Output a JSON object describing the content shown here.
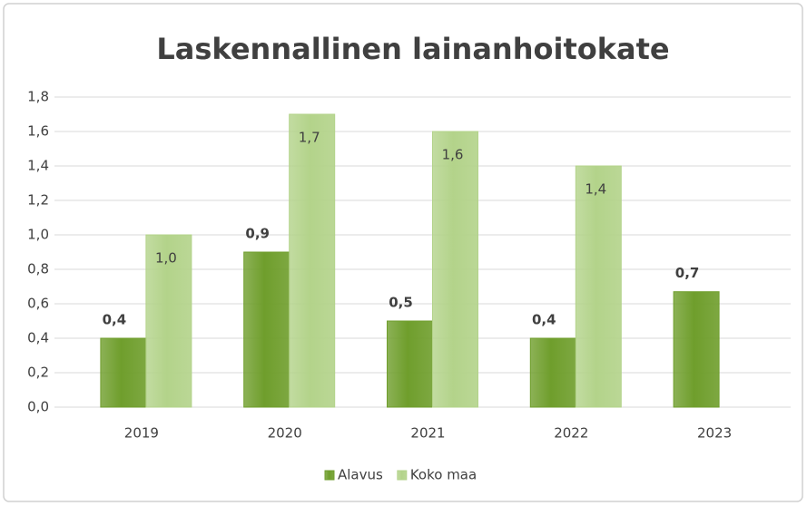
{
  "chart_data": {
    "type": "bar",
    "title": "Laskennallinen lainanhoitokate",
    "categories": [
      "2019",
      "2020",
      "2021",
      "2022",
      "2023"
    ],
    "series": [
      {
        "name": "Alavus",
        "color": "#6f9e2c",
        "values": [
          0.4,
          0.9,
          0.5,
          0.4,
          0.67
        ],
        "value_labels": [
          "0,4",
          "0,9",
          "0,5",
          "0,4",
          "0,7"
        ]
      },
      {
        "name": "Koko maa",
        "color": "#b3d38a",
        "values": [
          1.0,
          1.7,
          1.6,
          1.4,
          null
        ],
        "value_labels": [
          "1,0",
          "1,7",
          "1,6",
          "1,4",
          null
        ]
      }
    ],
    "ylim": [
      0,
      1.8
    ],
    "yticks": [
      {
        "value": 0,
        "label": "0,0"
      },
      {
        "value": 0.2,
        "label": "0,2"
      },
      {
        "value": 0.4,
        "label": "0,4"
      },
      {
        "value": 0.6,
        "label": "0,6"
      },
      {
        "value": 0.8,
        "label": "0,8"
      },
      {
        "value": 1.0,
        "label": "1,0"
      },
      {
        "value": 1.2,
        "label": "1,2"
      },
      {
        "value": 1.4,
        "label": "1,4"
      },
      {
        "value": 1.6,
        "label": "1,6"
      },
      {
        "value": 1.8,
        "label": "1,8"
      }
    ],
    "grid": true,
    "legend": "bottom"
  }
}
